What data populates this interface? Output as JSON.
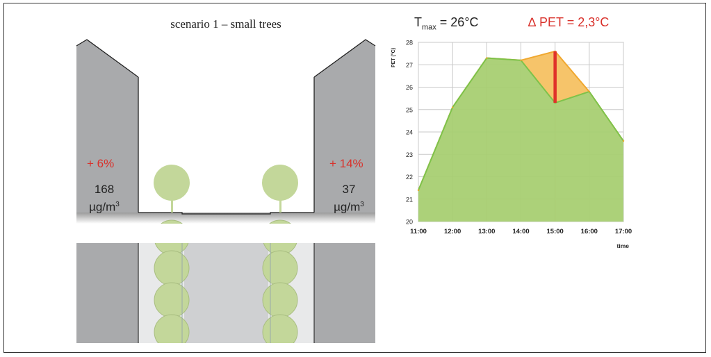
{
  "scenario": {
    "title": "scenario 1 – small trees",
    "left_building": {
      "change": "+ 6%",
      "value": "168",
      "unit": "µg/m",
      "unit_exp": "3"
    },
    "right_building": {
      "change": "+ 14%",
      "value": "37",
      "unit": "µg/m",
      "unit_exp": "3"
    }
  },
  "header": {
    "tmax_T": "T",
    "tmax_sub": "max",
    "tmax_value": " = 26°C",
    "delta_pet": "∆ PET = 2,3°C"
  },
  "colors": {
    "green_fill": "#a8cf72",
    "green_line": "#7ec24a",
    "orange_fill": "#f6c46a",
    "orange_line": "#f0a830",
    "red_bar": "#e0322a",
    "building": "#a9aaac",
    "tree": "#c3d79a"
  },
  "chart_data": {
    "type": "area",
    "ylabel": "PET (°C)",
    "xlabel": "time",
    "x": [
      "11:00",
      "12:00",
      "13:00",
      "14:00",
      "15:00",
      "16:00",
      "17:00"
    ],
    "ylim": [
      20,
      28
    ],
    "yticks": [
      20,
      21,
      22,
      23,
      24,
      25,
      26,
      27,
      28
    ],
    "grid": true,
    "series": [
      {
        "values": [
          21.4,
          25.1,
          27.3,
          27.2,
          25.3,
          25.8,
          23.6
        ]
      },
      {
        "values": [
          21.4,
          25.1,
          27.3,
          27.2,
          27.6,
          25.8,
          23.6
        ]
      }
    ],
    "annotation": {
      "x": "15:00",
      "from": 25.3,
      "to": 27.6
    }
  }
}
